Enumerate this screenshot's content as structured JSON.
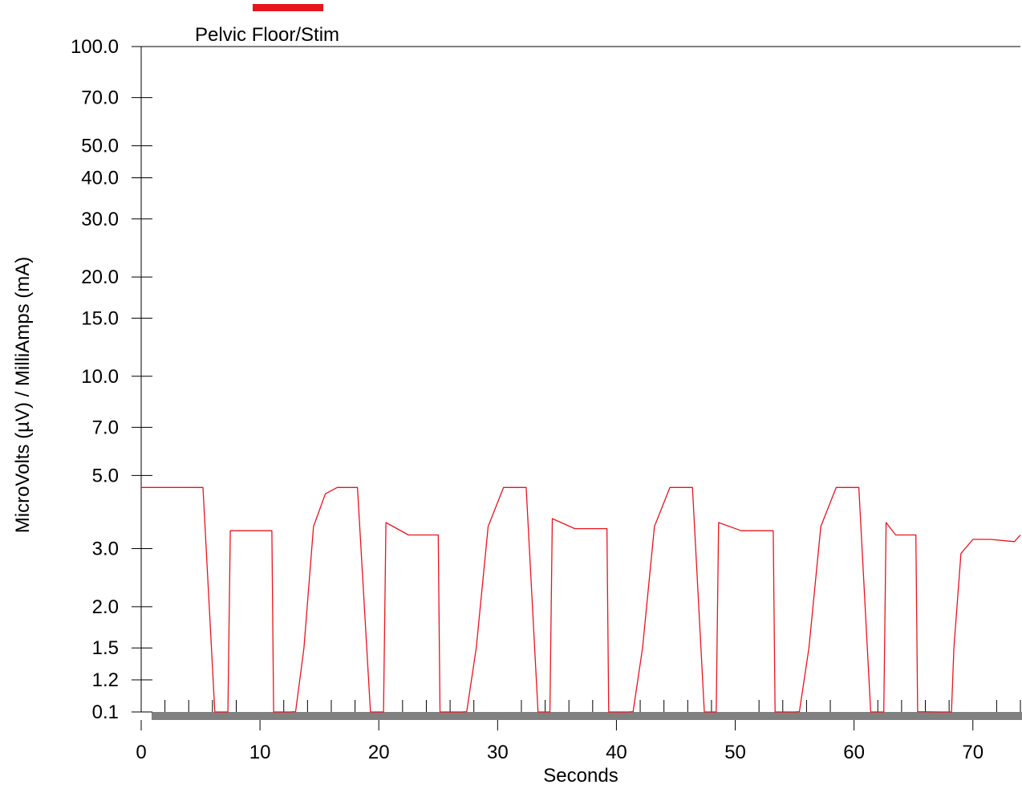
{
  "chart_data": {
    "type": "line",
    "xlabel": "Seconds",
    "ylabel": "MicroVolts (µV) / MilliAmps (mA)",
    "xlim": [
      0,
      74
    ],
    "ylim": [
      0.1,
      100.0
    ],
    "y_scale": "custom-log",
    "grid": false,
    "legend_position": "top-left",
    "x_ticks": [
      "0",
      "10",
      "20",
      "30",
      "40",
      "50",
      "60",
      "70"
    ],
    "y_ticks": [
      "100.0",
      "70.0",
      "50.0",
      "40.0",
      "30.0",
      "20.0",
      "15.0",
      "10.0",
      "7.0",
      "5.0",
      "3.0",
      "2.0",
      "1.5",
      "1.2",
      "0.1"
    ],
    "series": [
      {
        "name": "Pelvic Floor/Stim",
        "color": "#e8141c",
        "x": [
          0,
          5.2,
          6.2,
          7.3,
          7.5,
          11.0,
          11.15,
          12.5,
          13.0,
          13.7,
          14.5,
          15.5,
          16.5,
          18.2,
          19.3,
          20.4,
          20.6,
          22.5,
          25.0,
          25.15,
          27.0,
          27.4,
          28.2,
          29.2,
          30.5,
          32.4,
          33.4,
          34.4,
          34.6,
          36.5,
          39.2,
          39.35,
          41.0,
          41.4,
          42.2,
          43.2,
          44.5,
          46.4,
          47.4,
          48.4,
          48.6,
          50.5,
          53.2,
          53.35,
          55.0,
          55.4,
          56.2,
          57.2,
          58.5,
          60.4,
          61.4,
          62.5,
          62.7,
          63.5,
          65.2,
          65.35,
          67.2,
          68.2,
          68.4,
          69.0,
          70.0,
          71.5,
          73.5,
          74.0
        ],
        "y": [
          4.6,
          4.6,
          0.1,
          0.1,
          3.4,
          3.4,
          0.1,
          0.1,
          0.11,
          1.5,
          3.5,
          4.4,
          4.6,
          4.6,
          0.1,
          0.1,
          3.6,
          3.3,
          3.3,
          0.1,
          0.1,
          0.11,
          1.5,
          3.5,
          4.6,
          4.6,
          0.1,
          0.1,
          3.7,
          3.45,
          3.45,
          0.1,
          0.1,
          0.11,
          1.5,
          3.5,
          4.6,
          4.6,
          0.1,
          0.1,
          3.6,
          3.4,
          3.4,
          0.1,
          0.1,
          0.11,
          1.5,
          3.5,
          4.6,
          4.6,
          0.1,
          0.1,
          3.6,
          3.3,
          3.3,
          0.11,
          0.1,
          0.1,
          1.5,
          2.9,
          3.2,
          3.2,
          3.15,
          3.3
        ]
      }
    ]
  }
}
